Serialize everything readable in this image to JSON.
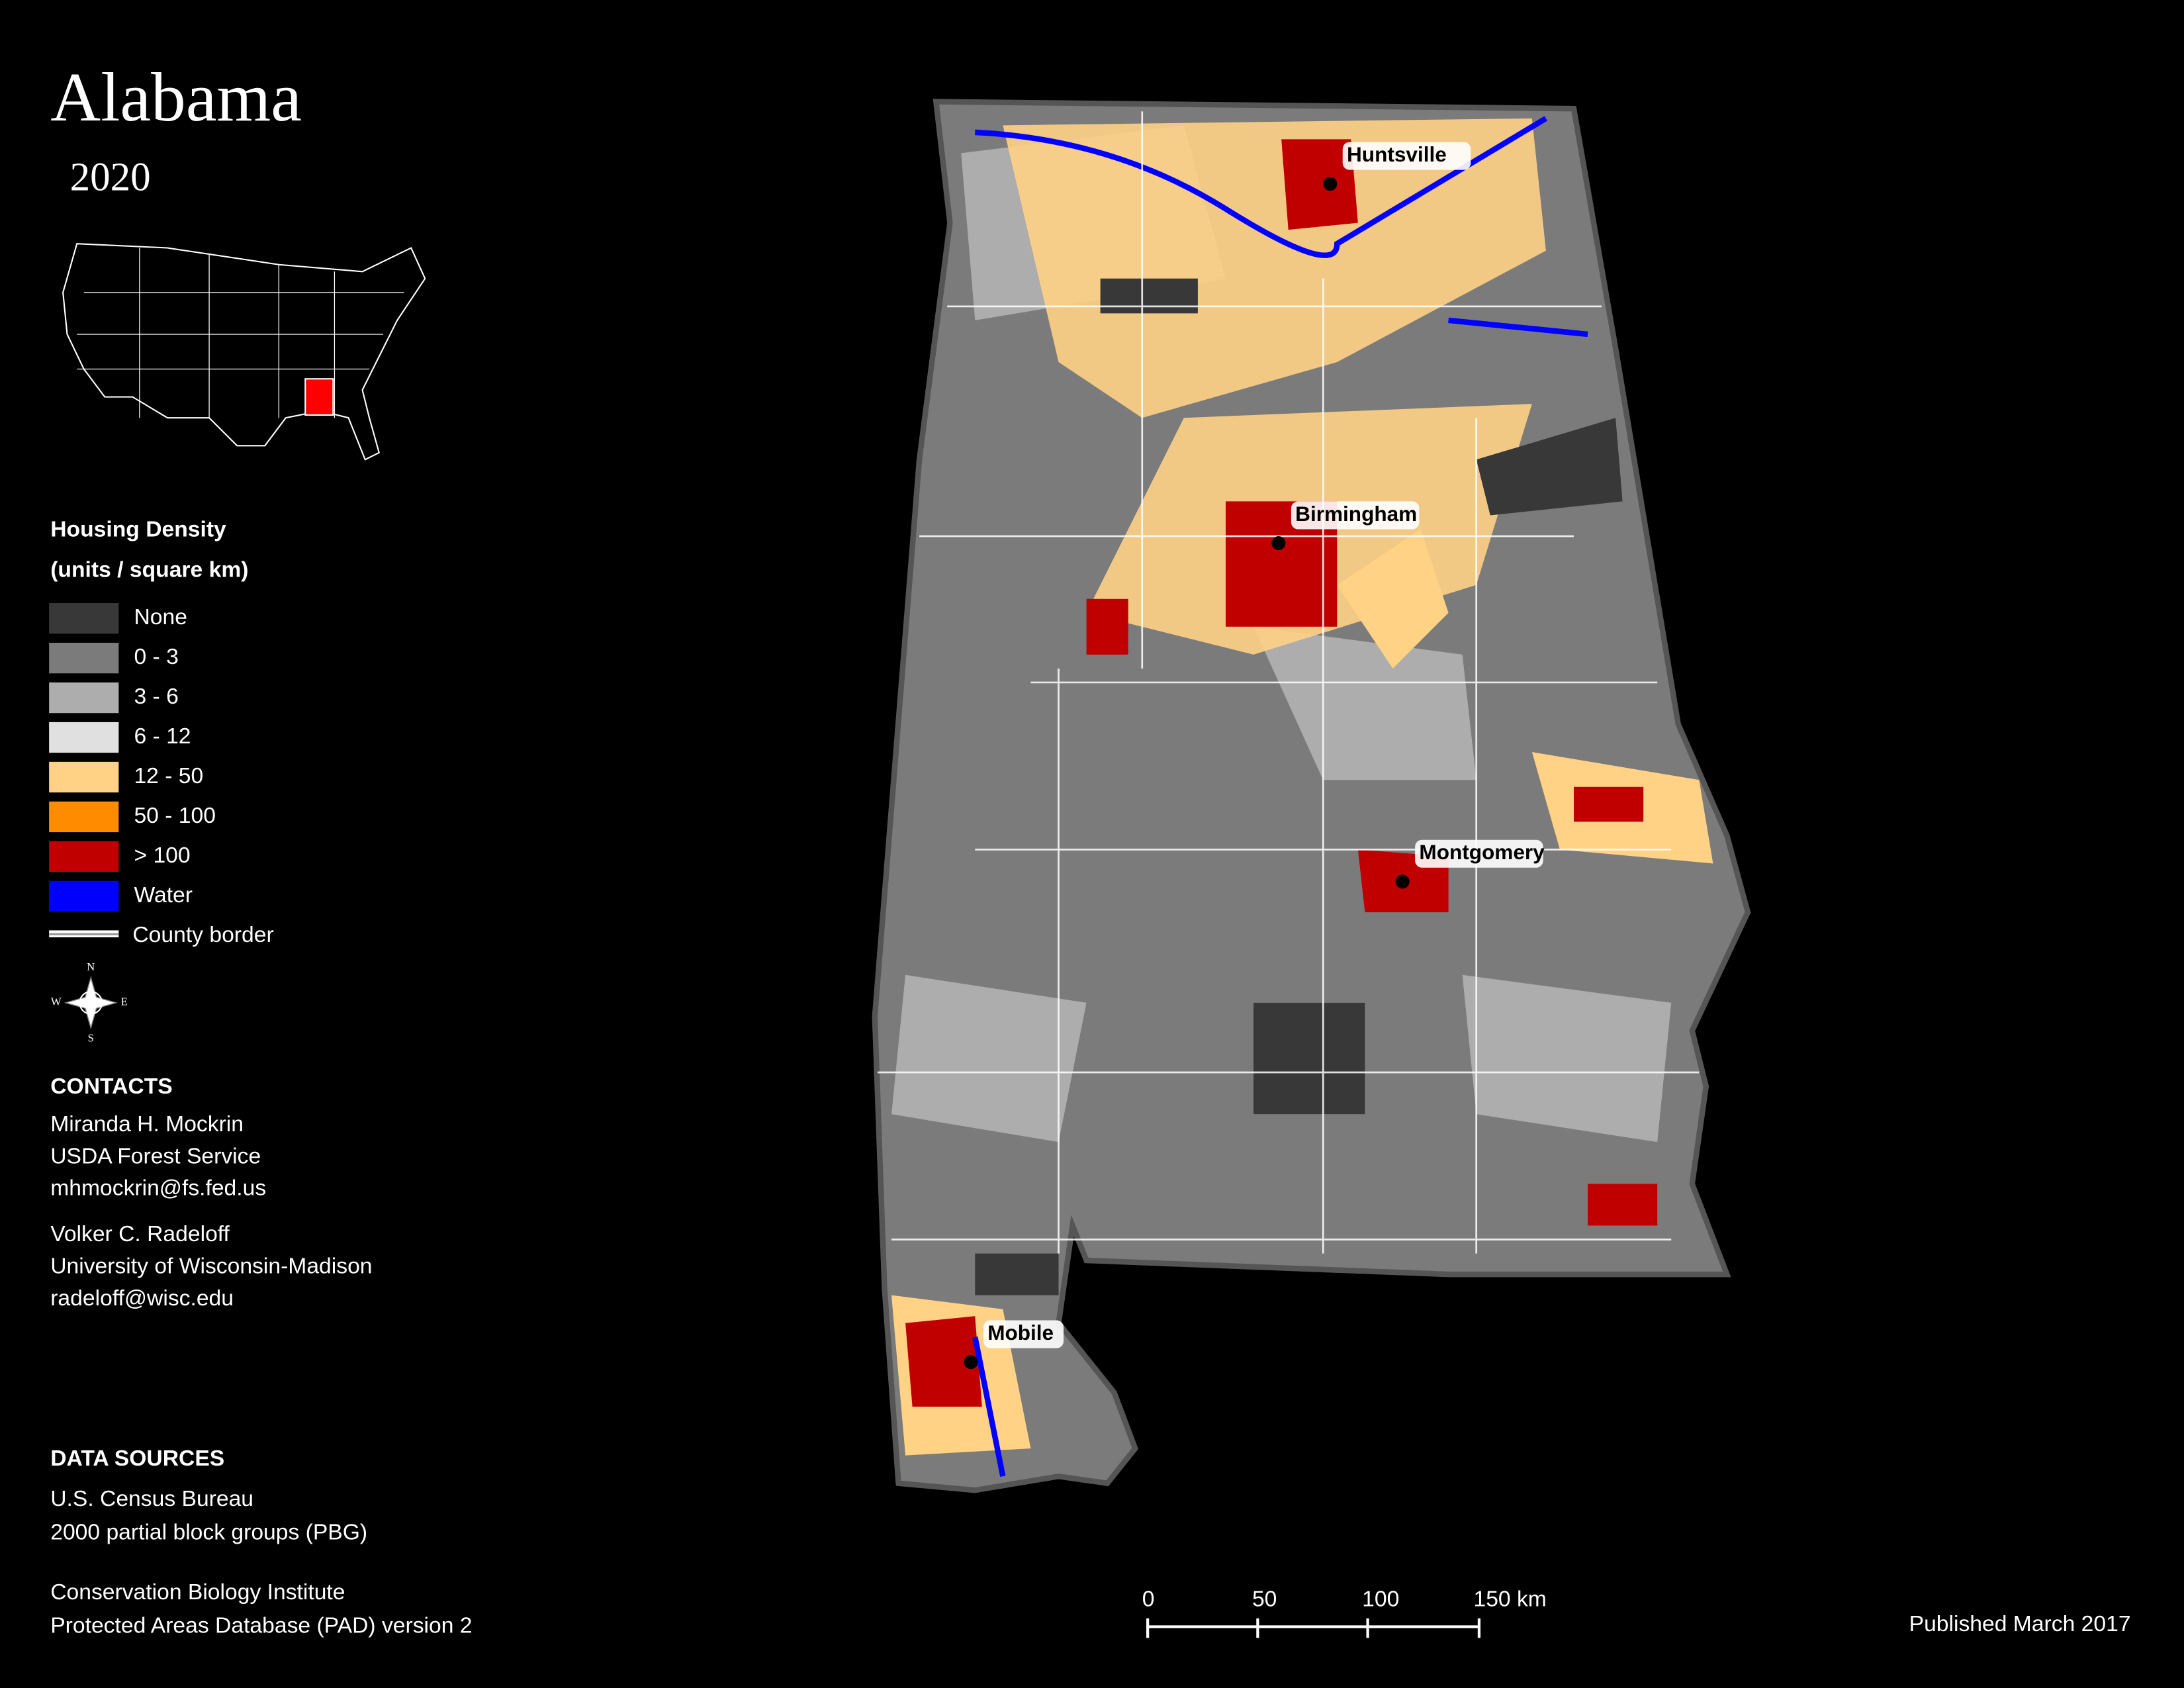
{
  "header": {
    "title": "Alabama",
    "year": "2020"
  },
  "legend": {
    "title": "Housing Density",
    "subtitle": "(units / square km)",
    "items": [
      {
        "label": "None",
        "color": "#383838"
      },
      {
        "label": "0 - 3",
        "color": "#7b7b7b"
      },
      {
        "label": "3 - 6",
        "color": "#adadad"
      },
      {
        "label": "6 - 12",
        "color": "#e0e0e0"
      },
      {
        "label": "12 - 50",
        "color": "#ffd285"
      },
      {
        "label": "50 - 100",
        "color": "#ff8c00"
      },
      {
        "label": "> 100",
        "color": "#c00000"
      },
      {
        "label": "Water",
        "color": "#0000ff"
      }
    ],
    "border_label": "County border"
  },
  "compass": {
    "n": "N",
    "s": "S",
    "e": "E",
    "w": "W"
  },
  "contacts": {
    "title": "CONTACTS",
    "people": [
      [
        "Miranda H. Mockrin",
        "USDA Forest Service",
        "mhmockrin@fs.fed.us"
      ],
      [
        "Volker C. Radeloff",
        "University of Wisconsin-Madison",
        "radeloff@wisc.edu"
      ]
    ]
  },
  "sources": {
    "title": "DATA SOURCES",
    "groups": [
      [
        "U.S. Census Bureau",
        "2000 partial block groups (PBG)"
      ],
      [
        "Conservation Biology Institute",
        "Protected Areas Database (PAD) version 2"
      ]
    ]
  },
  "scale": {
    "labels": [
      "0",
      "50",
      "100",
      "150 km"
    ]
  },
  "published": "Published March 2017",
  "cities": [
    "Huntsville",
    "Birmingham",
    "Montgomery",
    "Mobile"
  ]
}
